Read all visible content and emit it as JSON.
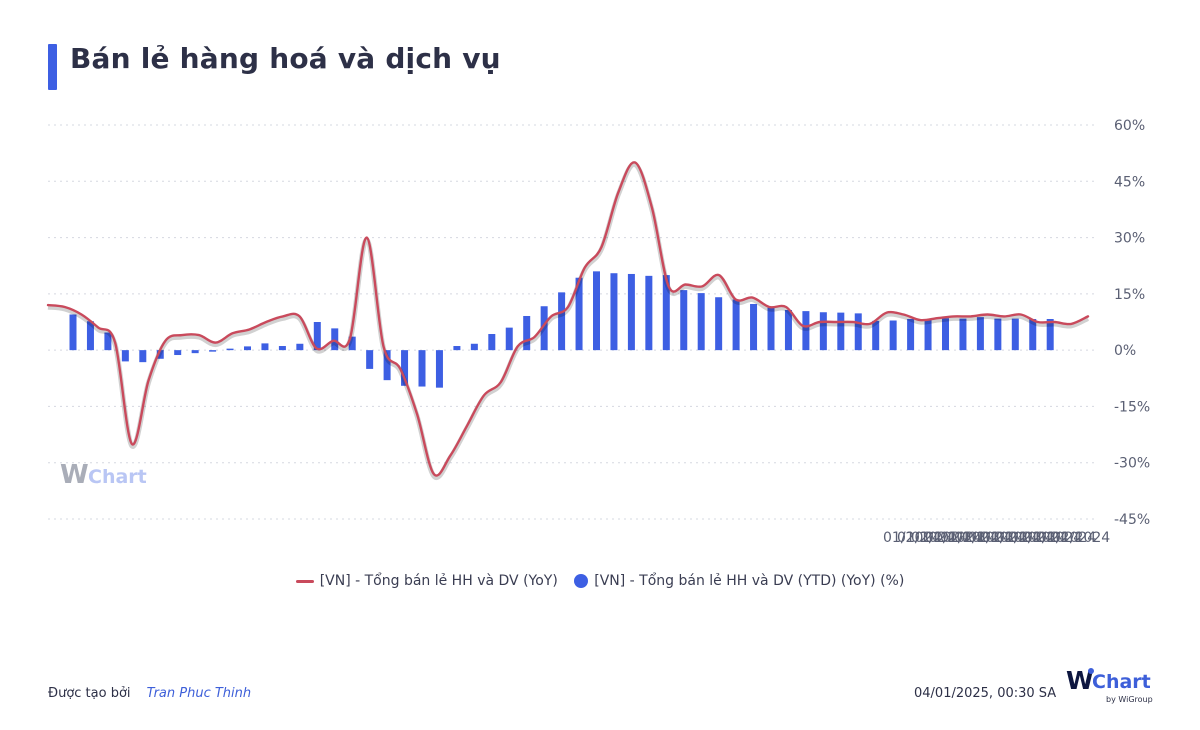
{
  "title": "Bán lẻ hàng hoá và dịch vụ",
  "colors": {
    "accent": "#3d5fe3",
    "line": "#c94a5c",
    "bar": "#3d5fe3",
    "grid": "#d5d8e0",
    "axis_text": "#5a5f73"
  },
  "legend": {
    "line_label": "[VN] - Tổng bán lẻ HH và DV (YoY)",
    "bar_label": "[VN] - Tổng bán lẻ HH và DV (YTD) (YoY) (%)"
  },
  "footer": {
    "created_by_label": "Được tạo bởi",
    "author": "Tran Phuc Thinh",
    "timestamp": "04/01/2025, 00:30 SA"
  },
  "brand": {
    "w": "W",
    "chart": "Chart",
    "sub": "by WiGroup"
  },
  "watermark": {
    "w": "W",
    "chart": "Chart"
  },
  "chart_data": {
    "type": "bar+line",
    "title": "Bán lẻ hàng hoá và dịch vụ",
    "y_ticks": [
      "60%",
      "45%",
      "30%",
      "15%",
      "0%",
      "-15%",
      "-30%",
      "-45%"
    ],
    "y_tick_values": [
      60,
      45,
      30,
      15,
      0,
      -15,
      -30,
      -45
    ],
    "ylim": [
      -45,
      60
    ],
    "x_tick_text": "01/2024",
    "grid": true,
    "legend_position": "bottom",
    "series": [
      {
        "name": "[VN] - Tổng bán lẻ HH và DV (YoY)",
        "type": "line",
        "values": [
          12.0,
          11.5,
          9.5,
          6.0,
          2.0,
          -25.0,
          -8.0,
          2.5,
          4.0,
          4.0,
          2.0,
          4.5,
          5.5,
          7.5,
          9.0,
          9.0,
          0.5,
          2.5,
          3.0,
          30.0,
          1.0,
          -5.0,
          -17.0,
          -33.0,
          -28.0,
          -20.0,
          -12.0,
          -8.5,
          1.0,
          3.5,
          9.0,
          11.5,
          22.0,
          27.5,
          42.0,
          50.0,
          38.0,
          17.0,
          17.5,
          17.0,
          20.0,
          13.5,
          14.0,
          11.5,
          11.5,
          6.5,
          7.5,
          7.5,
          7.5,
          7.0,
          10.0,
          9.5,
          8.0,
          8.5,
          9.0,
          9.0,
          9.5,
          9.0,
          9.5,
          7.5,
          7.5,
          7.0,
          9.0
        ]
      },
      {
        "name": "[VN] - Tổng bán lẻ HH và DV (YTD) (YoY) (%)",
        "type": "bar",
        "values": [
          9.5,
          7.7,
          4.7,
          -3.0,
          -3.2,
          -2.3,
          -1.3,
          -0.8,
          -0.4,
          0.4,
          1.0,
          1.8,
          1.1,
          1.7,
          7.5,
          5.8,
          3.6,
          -5.0,
          -8.0,
          -9.5,
          -9.7,
          -10.0,
          1.1,
          1.7,
          4.3,
          6.0,
          9.1,
          11.7,
          15.4,
          19.3,
          21.0,
          20.5,
          20.3,
          19.8,
          20.0,
          16.0,
          15.2,
          14.1,
          13.5,
          12.3,
          11.3,
          10.7,
          10.4,
          10.1,
          10.0,
          9.8,
          7.8,
          7.9,
          8.3,
          8.3,
          8.5,
          8.4,
          8.8,
          8.4,
          8.4,
          8.3,
          8.3
        ]
      }
    ]
  }
}
